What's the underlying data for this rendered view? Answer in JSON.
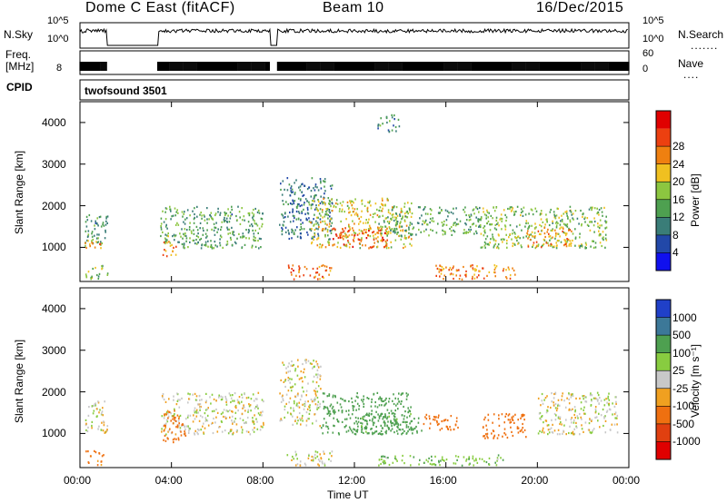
{
  "header": {
    "title": "Dome C East (fitACF)",
    "beam": "Beam 10",
    "date": "16/Dec/2015"
  },
  "status_panels": {
    "nsky": {
      "label": "N.Sky",
      "ticks": [
        "10^5",
        "10^0"
      ]
    },
    "nsearch": {
      "label": "N.Search",
      "ticks": [
        "10^5",
        "10^0"
      ]
    },
    "freq": {
      "label_top": "Freq.",
      "label_bottom": "[MHz]",
      "ticks": [
        "8"
      ]
    },
    "nave": {
      "label": "Nave",
      "ticks": [
        "60",
        "0"
      ]
    },
    "cpid": {
      "label": "CPID",
      "value": "twofsound 3501"
    }
  },
  "colors": {
    "power": [
      "#1010ee",
      "#2248a8",
      "#3a7d78",
      "#4ea050",
      "#8cc640",
      "#f0c020",
      "#ef8010",
      "#ec4010",
      "#e00000"
    ],
    "velocity": [
      "#2040c8",
      "#3c7898",
      "#4ea050",
      "#88cc40",
      "#c8c8c8",
      "#f0a020",
      "#ef7010",
      "#e04010",
      "#e00000"
    ]
  },
  "chart_data": [
    {
      "type": "heatmap",
      "name": "power",
      "ylabel": "Slant Range [km]",
      "xlabel": "",
      "x_ticks": [
        "00:00",
        "04:00",
        "08:00",
        "12:00",
        "16:00",
        "20:00",
        "00:00"
      ],
      "x_range_hours": [
        0,
        24
      ],
      "y_ticks": [
        1000,
        2000,
        3000,
        4000
      ],
      "y_range": [
        180,
        4500
      ],
      "colorbar": {
        "label": "Power [dB]",
        "ticks": [
          4,
          8,
          12,
          16,
          20,
          24,
          28
        ],
        "range": [
          0,
          32
        ]
      },
      "no_data_gaps_hours": [
        [
          1.2,
          3.4
        ],
        [
          8.3,
          8.6
        ]
      ],
      "regions": [
        {
          "t": [
            0.2,
            1.2
          ],
          "r": [
            1100,
            1800
          ],
          "v": 12
        },
        {
          "t": [
            0.2,
            1.0
          ],
          "r": [
            1000,
            1250
          ],
          "v": 22
        },
        {
          "t": [
            0.2,
            1.2
          ],
          "r": [
            250,
            600
          ],
          "v": 14
        },
        {
          "t": [
            3.5,
            8.0
          ],
          "r": [
            1000,
            2000
          ],
          "v": 12
        },
        {
          "t": [
            3.6,
            4.2
          ],
          "r": [
            800,
            1300
          ],
          "v": 22
        },
        {
          "t": [
            8.7,
            11.0
          ],
          "r": [
            1200,
            2700
          ],
          "v": 9
        },
        {
          "t": [
            9.0,
            11.0
          ],
          "r": [
            250,
            600
          ],
          "v": 24
        },
        {
          "t": [
            10.0,
            14.5
          ],
          "r": [
            1000,
            2200
          ],
          "v": 18
        },
        {
          "t": [
            11.0,
            13.5
          ],
          "r": [
            1000,
            1500
          ],
          "v": 25
        },
        {
          "t": [
            13.0,
            17.5
          ],
          "r": [
            1300,
            2000
          ],
          "v": 13
        },
        {
          "t": [
            15.5,
            19.0
          ],
          "r": [
            250,
            600
          ],
          "v": 23
        },
        {
          "t": [
            17.5,
            23.0
          ],
          "r": [
            1000,
            2000
          ],
          "v": 15
        },
        {
          "t": [
            19.5,
            21.5
          ],
          "r": [
            1000,
            1500
          ],
          "v": 22
        },
        {
          "t": [
            13.0,
            14.0
          ],
          "r": [
            3800,
            4200
          ],
          "v": 10
        }
      ]
    },
    {
      "type": "heatmap",
      "name": "velocity",
      "ylabel": "Slant Range [km]",
      "xlabel": "Time UT",
      "x_ticks": [
        "00:00",
        "04:00",
        "08:00",
        "12:00",
        "16:00",
        "20:00",
        "00:00"
      ],
      "x_range_hours": [
        0,
        24
      ],
      "y_ticks": [
        1000,
        2000,
        3000,
        4000
      ],
      "y_range": [
        180,
        4500
      ],
      "colorbar": {
        "label": "Velocity [m s⁻¹]",
        "ticks": [
          "1000",
          "500",
          "100",
          "25",
          "-25",
          "-100",
          "-500",
          "-1000"
        ]
      },
      "no_data_gaps_hours": [
        [
          1.2,
          3.4
        ],
        [
          8.3,
          8.6
        ]
      ],
      "regions": [
        {
          "t": [
            0.2,
            1.2
          ],
          "r": [
            1000,
            1800
          ],
          "v": 0
        },
        {
          "t": [
            0.2,
            1.0
          ],
          "r": [
            250,
            600
          ],
          "v": -150
        },
        {
          "t": [
            3.5,
            8.0
          ],
          "r": [
            1000,
            2000
          ],
          "v": 0
        },
        {
          "t": [
            3.6,
            4.6
          ],
          "r": [
            800,
            1600
          ],
          "v": -250
        },
        {
          "t": [
            8.7,
            10.5
          ],
          "r": [
            1200,
            2800
          ],
          "v": 0
        },
        {
          "t": [
            10.5,
            14.5
          ],
          "r": [
            1000,
            2000
          ],
          "v": 300
        },
        {
          "t": [
            12.0,
            15.0
          ],
          "r": [
            1000,
            1500
          ],
          "v": 150
        },
        {
          "t": [
            15.0,
            16.5
          ],
          "r": [
            1100,
            1500
          ],
          "v": -200
        },
        {
          "t": [
            17.5,
            19.5
          ],
          "r": [
            900,
            1500
          ],
          "v": -200
        },
        {
          "t": [
            20.0,
            23.5
          ],
          "r": [
            1000,
            2000
          ],
          "v": 0
        },
        {
          "t": [
            13.0,
            18.5
          ],
          "r": [
            250,
            500
          ],
          "v": 80
        },
        {
          "t": [
            9.0,
            11.0
          ],
          "r": [
            250,
            600
          ],
          "v": 0
        }
      ]
    }
  ]
}
